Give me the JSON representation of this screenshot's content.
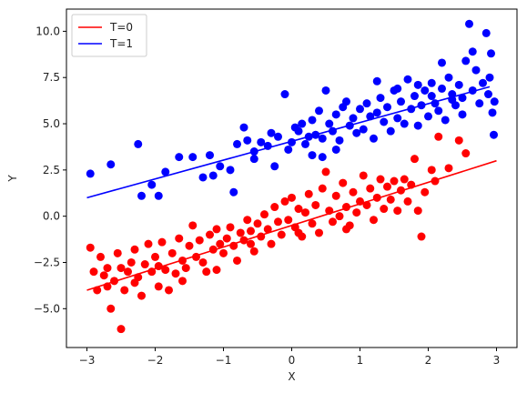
{
  "chart_data": {
    "type": "scatter",
    "xlabel": "X",
    "ylabel": "Y",
    "xlim": [
      -3.3,
      3.3
    ],
    "ylim": [
      -7.1,
      11.2
    ],
    "xticks": [
      -3,
      -2,
      -1,
      0,
      1,
      2,
      3
    ],
    "yticks": [
      -5.0,
      -2.5,
      0.0,
      2.5,
      5.0,
      7.5,
      10.0
    ],
    "ytick_labels": [
      "−5.0",
      "−2.5",
      "0.0",
      "2.5",
      "5.0",
      "7.5",
      "10.0"
    ],
    "xtick_labels": [
      "−3",
      "−2",
      "−1",
      "0",
      "1",
      "2",
      "3"
    ],
    "legend_position": "top-left",
    "series": [
      {
        "name": "T=0",
        "color": "#ff0000",
        "fit_line": {
          "x": [
            -3.0,
            3.0
          ],
          "y": [
            -4.0,
            3.0
          ]
        },
        "points": [
          [
            -2.95,
            -1.7
          ],
          [
            -2.9,
            -3.0
          ],
          [
            -2.85,
            -4.0
          ],
          [
            -2.8,
            -2.2
          ],
          [
            -2.75,
            -3.2
          ],
          [
            -2.7,
            -2.8
          ],
          [
            -2.65,
            -5.0
          ],
          [
            -2.6,
            -3.5
          ],
          [
            -2.55,
            -2.0
          ],
          [
            -2.5,
            -6.1
          ],
          [
            -2.5,
            -2.8
          ],
          [
            -2.45,
            -4.0
          ],
          [
            -2.4,
            -3.0
          ],
          [
            -2.35,
            -2.5
          ],
          [
            -2.3,
            -1.8
          ],
          [
            -2.25,
            -3.3
          ],
          [
            -2.2,
            -4.3
          ],
          [
            -2.15,
            -2.6
          ],
          [
            -2.1,
            -1.5
          ],
          [
            -2.05,
            -3.0
          ],
          [
            -2.0,
            -2.2
          ],
          [
            -1.95,
            -3.8
          ],
          [
            -1.9,
            -1.4
          ],
          [
            -1.85,
            -2.9
          ],
          [
            -1.8,
            -4.0
          ],
          [
            -1.75,
            -2.0
          ],
          [
            -1.7,
            -3.1
          ],
          [
            -1.65,
            -1.2
          ],
          [
            -1.6,
            -2.4
          ],
          [
            -1.55,
            -2.8
          ],
          [
            -1.5,
            -1.6
          ],
          [
            -1.45,
            -0.5
          ],
          [
            -1.4,
            -2.2
          ],
          [
            -1.35,
            -1.3
          ],
          [
            -1.3,
            -2.5
          ],
          [
            -1.25,
            -3.0
          ],
          [
            -1.2,
            -1.0
          ],
          [
            -1.15,
            -1.8
          ],
          [
            -1.1,
            -0.7
          ],
          [
            -1.05,
            -1.5
          ],
          [
            -1.0,
            -2.0
          ],
          [
            -0.95,
            -1.2
          ],
          [
            -0.9,
            -0.6
          ],
          [
            -0.85,
            -1.6
          ],
          [
            -0.8,
            -2.4
          ],
          [
            -0.75,
            -0.9
          ],
          [
            -0.7,
            -1.3
          ],
          [
            -0.65,
            -0.2
          ],
          [
            -0.6,
            -0.8
          ],
          [
            -0.55,
            -1.9
          ],
          [
            -0.5,
            -0.4
          ],
          [
            -0.45,
            -1.1
          ],
          [
            -0.4,
            0.1
          ],
          [
            -0.35,
            -0.7
          ],
          [
            -0.3,
            -1.5
          ],
          [
            -0.25,
            0.5
          ],
          [
            -0.2,
            -0.3
          ],
          [
            -0.15,
            -1.0
          ],
          [
            -0.1,
            0.8
          ],
          [
            -0.05,
            -0.2
          ],
          [
            0.0,
            1.0
          ],
          [
            0.05,
            -0.6
          ],
          [
            0.1,
            0.4
          ],
          [
            0.15,
            -1.1
          ],
          [
            0.2,
            0.2
          ],
          [
            0.25,
            1.2
          ],
          [
            0.3,
            -0.4
          ],
          [
            0.35,
            0.6
          ],
          [
            0.4,
            -0.9
          ],
          [
            0.45,
            1.5
          ],
          [
            0.5,
            2.4
          ],
          [
            0.55,
            0.3
          ],
          [
            0.6,
            -0.3
          ],
          [
            0.65,
            1.1
          ],
          [
            0.7,
            0.0
          ],
          [
            0.75,
            1.8
          ],
          [
            0.8,
            0.5
          ],
          [
            0.85,
            -0.5
          ],
          [
            0.9,
            1.3
          ],
          [
            0.95,
            0.2
          ],
          [
            1.0,
            0.8
          ],
          [
            1.05,
            2.2
          ],
          [
            1.1,
            0.6
          ],
          [
            1.15,
            1.5
          ],
          [
            1.2,
            -0.2
          ],
          [
            1.25,
            1.0
          ],
          [
            1.3,
            2.0
          ],
          [
            1.35,
            0.4
          ],
          [
            1.4,
            1.6
          ],
          [
            1.45,
            0.9
          ],
          [
            1.5,
            1.9
          ],
          [
            1.55,
            0.3
          ],
          [
            1.6,
            1.4
          ],
          [
            1.65,
            2.0
          ],
          [
            1.7,
            0.8
          ],
          [
            1.75,
            1.7
          ],
          [
            1.8,
            3.1
          ],
          [
            1.85,
            0.3
          ],
          [
            1.9,
            -1.1
          ],
          [
            1.95,
            1.3
          ],
          [
            2.05,
            2.5
          ],
          [
            2.1,
            1.9
          ],
          [
            2.15,
            4.3
          ],
          [
            2.3,
            2.6
          ],
          [
            2.45,
            4.1
          ],
          [
            2.55,
            3.4
          ],
          [
            -2.7,
            -3.8
          ],
          [
            -2.3,
            -3.6
          ],
          [
            -1.95,
            -2.7
          ],
          [
            -1.6,
            -3.5
          ],
          [
            -1.1,
            -2.9
          ],
          [
            -0.6,
            -1.5
          ],
          [
            0.1,
            -0.9
          ],
          [
            0.8,
            -0.7
          ]
        ]
      },
      {
        "name": "T=1",
        "color": "#0000ff",
        "fit_line": {
          "x": [
            -3.0,
            2.9
          ],
          "y": [
            1.0,
            7.0
          ]
        },
        "points": [
          [
            -2.95,
            2.3
          ],
          [
            -2.65,
            2.8
          ],
          [
            -2.25,
            3.9
          ],
          [
            -2.2,
            1.1
          ],
          [
            -2.05,
            1.7
          ],
          [
            -1.95,
            1.1
          ],
          [
            -1.85,
            2.4
          ],
          [
            -1.65,
            3.2
          ],
          [
            -1.45,
            3.2
          ],
          [
            -1.3,
            2.1
          ],
          [
            -1.2,
            3.3
          ],
          [
            -1.15,
            2.2
          ],
          [
            -1.05,
            2.7
          ],
          [
            -0.9,
            2.5
          ],
          [
            -0.8,
            3.9
          ],
          [
            -0.7,
            4.8
          ],
          [
            -0.65,
            4.1
          ],
          [
            -0.55,
            3.5
          ],
          [
            -0.45,
            4.0
          ],
          [
            -0.35,
            3.8
          ],
          [
            -0.3,
            4.5
          ],
          [
            -0.2,
            4.3
          ],
          [
            -0.1,
            6.6
          ],
          [
            -0.05,
            3.6
          ],
          [
            0.0,
            4.0
          ],
          [
            0.05,
            4.8
          ],
          [
            0.1,
            4.6
          ],
          [
            0.15,
            5.0
          ],
          [
            0.2,
            3.9
          ],
          [
            0.25,
            4.3
          ],
          [
            0.3,
            5.2
          ],
          [
            0.35,
            4.4
          ],
          [
            0.4,
            5.7
          ],
          [
            0.45,
            4.2
          ],
          [
            0.5,
            6.8
          ],
          [
            0.55,
            5.0
          ],
          [
            0.6,
            4.6
          ],
          [
            0.65,
            5.5
          ],
          [
            0.7,
            4.1
          ],
          [
            0.75,
            5.9
          ],
          [
            0.8,
            6.2
          ],
          [
            0.85,
            4.9
          ],
          [
            0.9,
            5.3
          ],
          [
            0.95,
            4.5
          ],
          [
            1.0,
            5.8
          ],
          [
            1.05,
            4.7
          ],
          [
            1.1,
            6.1
          ],
          [
            1.15,
            5.4
          ],
          [
            1.2,
            4.2
          ],
          [
            1.25,
            5.6
          ],
          [
            1.3,
            6.4
          ],
          [
            1.35,
            5.1
          ],
          [
            1.4,
            5.9
          ],
          [
            1.45,
            4.6
          ],
          [
            1.5,
            6.8
          ],
          [
            1.55,
            5.3
          ],
          [
            1.6,
            6.2
          ],
          [
            1.65,
            5.0
          ],
          [
            1.7,
            7.4
          ],
          [
            1.75,
            5.8
          ],
          [
            1.8,
            6.5
          ],
          [
            1.85,
            4.9
          ],
          [
            1.9,
            6.0
          ],
          [
            1.95,
            6.8
          ],
          [
            2.0,
            5.4
          ],
          [
            2.05,
            7.2
          ],
          [
            2.1,
            6.1
          ],
          [
            2.15,
            5.7
          ],
          [
            2.2,
            6.9
          ],
          [
            2.25,
            5.2
          ],
          [
            2.3,
            7.5
          ],
          [
            2.35,
            6.3
          ],
          [
            2.4,
            6.0
          ],
          [
            2.45,
            7.1
          ],
          [
            2.5,
            5.5
          ],
          [
            2.55,
            8.4
          ],
          [
            2.6,
            10.4
          ],
          [
            2.65,
            6.8
          ],
          [
            2.7,
            7.9
          ],
          [
            2.75,
            6.1
          ],
          [
            2.8,
            7.2
          ],
          [
            2.85,
            9.9
          ],
          [
            2.88,
            6.6
          ],
          [
            2.9,
            7.5
          ],
          [
            2.92,
            8.8
          ],
          [
            2.94,
            5.6
          ],
          [
            2.96,
            4.4
          ],
          [
            2.97,
            6.2
          ],
          [
            2.65,
            8.9
          ],
          [
            2.5,
            6.4
          ],
          [
            2.35,
            6.6
          ],
          [
            2.2,
            8.3
          ],
          [
            2.05,
            6.5
          ],
          [
            1.85,
            7.1
          ],
          [
            1.55,
            6.9
          ],
          [
            1.25,
            7.3
          ],
          [
            0.45,
            3.2
          ],
          [
            -0.25,
            2.7
          ],
          [
            0.3,
            3.3
          ],
          [
            -0.55,
            3.1
          ],
          [
            -0.85,
            1.3
          ],
          [
            0.65,
            3.6
          ]
        ]
      }
    ]
  }
}
